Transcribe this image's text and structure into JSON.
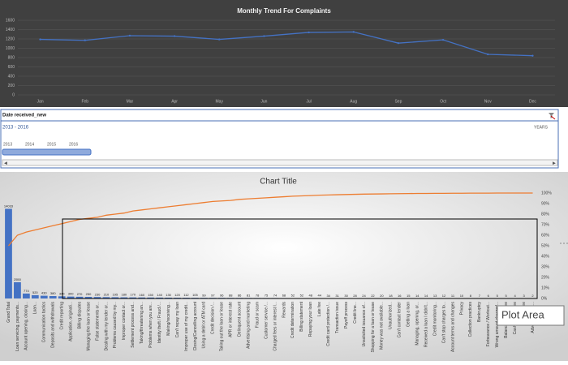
{
  "chart_data": [
    {
      "type": "line",
      "title": "Monthly Trend For Complaints",
      "categories": [
        "Jan",
        "Feb",
        "Mar",
        "Apr",
        "May",
        "Jun",
        "Jul",
        "Aug",
        "Sep",
        "Oct",
        "Nov",
        "Dec"
      ],
      "values": [
        1190,
        1170,
        1270,
        1260,
        1190,
        1260,
        1340,
        1350,
        1110,
        1180,
        870,
        840
      ],
      "color": "#4472c4",
      "ylim": [
        0,
        1600
      ],
      "yticks": [
        0,
        200,
        400,
        600,
        800,
        1000,
        1200,
        1400,
        1600
      ],
      "grid": true
    },
    {
      "type": "pareto",
      "title": "Chart Title",
      "categories": [
        "Grand Total",
        "Loan servicing, payments...",
        "Account opening, closing...",
        "Loan...",
        "Communication tactics",
        "Deposits and withdrawals",
        "Credit reporting",
        "Application, originati...",
        "Billing disputes",
        "Managing the loan or lease",
        "False statements or...",
        "Dealing with my lender or...",
        "Problems caused by my...",
        "Improper contact or...",
        "Settlement process and...",
        "Taking/threatening an...",
        "Problems when you are...",
        "Identity theft / Fraud /...",
        "Making/receiving...",
        "Can't repay my loan",
        "Improper use of my credit...",
        "Closing/Cancelling account",
        "Using a debit or ATM card",
        "Credit decision /...",
        "Taking out the loan or lease",
        "APR or interest rate",
        "Delinquent account",
        "Advertising and marketing",
        "Fraud or scam",
        "Customer service /...",
        "Charged fees or interest I...",
        "Rewards",
        "Credit determination",
        "Billing statement",
        "Repaying your loan",
        "Late fee",
        "Credit card protection /...",
        "Transaction issue",
        "Payoff process",
        "Credit line...",
        "Unsolicited issuance of...",
        "Shopping for a loan or lease",
        "Money was not available...",
        "Unauthorized...",
        "Can't contact lender",
        "Getting a loan",
        "Managing, opening, or...",
        "Received a loan I didn't...",
        "Credit monitoring...",
        "Can't stop charges to...",
        "Account terms and changes",
        "Privacy",
        "Collection practices",
        "Bankruptcy",
        "Forbearance / Workout...",
        "Wrong amount charged...",
        "Balance transfer fee",
        "Cash advance fee",
        "Overlimit fee",
        "Advertising, ma..."
      ],
      "series": [
        {
          "name": "Count",
          "color": "#4472c4",
          "values": [
            14033,
            2550,
            774,
            520,
            430,
            380,
            340,
            300,
            270,
            250,
            230,
            210,
            195,
            180,
            170,
            160,
            150,
            140,
            130,
            120,
            112,
            105,
            99,
            97,
            96,
            88,
            86,
            81,
            78,
            75,
            74,
            68,
            52,
            52,
            48,
            44,
            34,
            31,
            30,
            28,
            24,
            22,
            20,
            18,
            16,
            15,
            14,
            14,
            13,
            12,
            11,
            10,
            8,
            7,
            6,
            5,
            5,
            4,
            3,
            2
          ]
        },
        {
          "name": "Cumulative %",
          "color": "#ed7d31",
          "axis": "y2",
          "values": [
            50,
            60,
            63,
            65,
            67,
            69,
            71,
            73,
            75,
            76,
            77,
            79,
            80,
            81,
            83,
            84,
            85,
            86,
            87,
            88,
            89,
            90,
            91,
            92,
            92.5,
            93,
            94,
            94.5,
            95,
            95.5,
            96,
            96.5,
            97,
            97.3,
            97.6,
            98,
            98.2,
            98.4,
            98.6,
            98.8,
            99,
            99.1,
            99.2,
            99.3,
            99.4,
            99.5,
            99.6,
            99.6,
            99.7,
            99.7,
            99.8,
            99.8,
            99.9,
            99.9,
            99.9,
            100,
            100,
            100,
            100,
            100
          ]
        }
      ],
      "ylim": [
        0,
        16500
      ],
      "y2lim": [
        0,
        100
      ],
      "y2ticks": [
        {
          "value": 0,
          "label": "0%"
        },
        {
          "value": 10,
          "label": "10%"
        },
        {
          "value": 20,
          "label": "20%"
        },
        {
          "value": 30,
          "label": "30%"
        },
        {
          "value": 40,
          "label": "40%"
        },
        {
          "value": 50,
          "label": "50%"
        },
        {
          "value": 60,
          "label": "60%"
        },
        {
          "value": 70,
          "label": "70%"
        },
        {
          "value": 80,
          "label": "80%"
        },
        {
          "value": 90,
          "label": "90%"
        },
        {
          "value": 100,
          "label": "100%"
        }
      ]
    }
  ],
  "slicer": {
    "title": "Date received_new",
    "range": "2013 - 2016",
    "level": "YEARS",
    "years": [
      "2013",
      "2014",
      "2015",
      "2016"
    ]
  },
  "tooltip": "Plot Area"
}
